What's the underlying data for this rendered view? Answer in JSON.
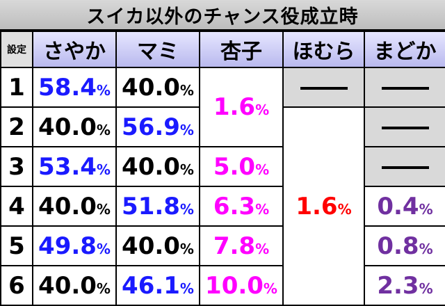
{
  "title": "スイカ以外のチャンス役成立時",
  "headers": {
    "setting": "設定",
    "sayaka": "さやか",
    "mami": "マミ",
    "kyoko": "杏子",
    "homura": "ほむら",
    "madoka": "まどか"
  },
  "percent_sign": "%",
  "rows": [
    {
      "setting": "1",
      "sayaka": "58.4",
      "mami": "40.0"
    },
    {
      "setting": "2",
      "sayaka": "40.0",
      "mami": "56.9"
    },
    {
      "setting": "3",
      "sayaka": "53.4",
      "mami": "40.0"
    },
    {
      "setting": "4",
      "sayaka": "40.0",
      "mami": "51.8"
    },
    {
      "setting": "5",
      "sayaka": "49.8",
      "mami": "40.0"
    },
    {
      "setting": "6",
      "sayaka": "40.0",
      "mami": "46.1"
    }
  ],
  "kyoko": {
    "settings_1_2": "1.6",
    "setting_3": "5.0",
    "setting_4": "6.3",
    "setting_5": "7.8",
    "setting_6": "10.0"
  },
  "homura": {
    "settings_2_6": "1.6"
  },
  "madoka": {
    "setting_4": "0.4",
    "setting_5": "0.8",
    "setting_6": "2.3"
  },
  "colors": {
    "header_bg": "#b9b9ee",
    "blue_value": "#1a1aff",
    "kyoko_value": "#ff00ff",
    "homura_value": "#ff0000",
    "madoka_value": "#7030a0",
    "dash_cell_bg": "#d9d9d9"
  }
}
